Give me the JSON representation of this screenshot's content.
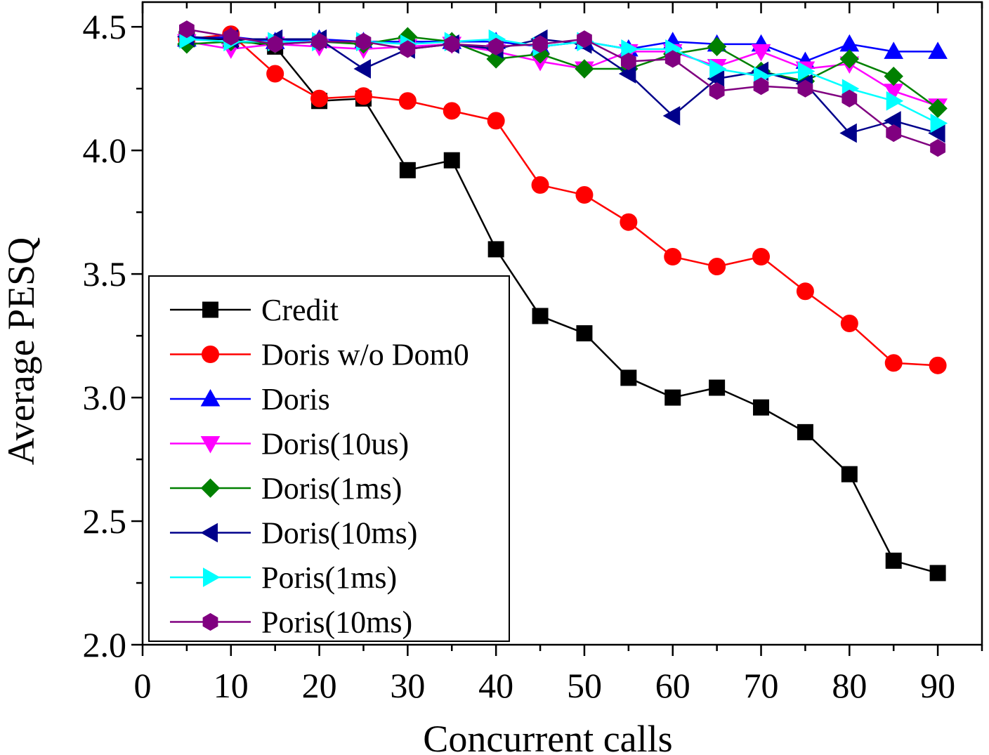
{
  "chart_data": {
    "type": "line",
    "xlabel": "Concurrent calls",
    "ylabel": "Average PESQ",
    "xlim": [
      0,
      95
    ],
    "ylim": [
      2.0,
      4.6
    ],
    "xticks": [
      "0",
      "10",
      "20",
      "30",
      "40",
      "50",
      "60",
      "70",
      "80",
      "90"
    ],
    "yticks": [
      "2.0",
      "2.5",
      "3.0",
      "3.5",
      "4.0",
      "4.5"
    ],
    "legend_position": "lower-left",
    "grid": false,
    "x": [
      5,
      10,
      15,
      20,
      25,
      30,
      35,
      40,
      45,
      50,
      55,
      60,
      65,
      70,
      75,
      80,
      85,
      90
    ],
    "series": [
      {
        "name": "Credit",
        "color": "#000000",
        "marker": "square",
        "values": [
          4.45,
          4.45,
          4.42,
          4.2,
          4.21,
          3.92,
          3.96,
          3.6,
          3.33,
          3.26,
          3.08,
          3.0,
          3.04,
          2.96,
          2.86,
          2.69,
          2.34,
          2.29
        ]
      },
      {
        "name": "Doris w/o Dom0",
        "color": "#ff0000",
        "marker": "circle",
        "values": [
          4.45,
          4.47,
          4.31,
          4.21,
          4.22,
          4.2,
          4.16,
          4.12,
          3.86,
          3.82,
          3.71,
          3.57,
          3.53,
          3.57,
          3.43,
          3.3,
          3.14,
          3.13
        ]
      },
      {
        "name": "Doris",
        "color": "#0000ff",
        "marker": "triangle-up",
        "values": [
          4.45,
          4.46,
          4.44,
          4.45,
          4.44,
          4.44,
          4.44,
          4.44,
          4.42,
          4.44,
          4.41,
          4.44,
          4.43,
          4.43,
          4.36,
          4.43,
          4.4,
          4.4
        ]
      },
      {
        "name": "Doris(10us)",
        "color": "#ff00ff",
        "marker": "triangle-down",
        "values": [
          4.44,
          4.41,
          4.43,
          4.42,
          4.41,
          4.42,
          4.43,
          4.4,
          4.36,
          4.33,
          4.4,
          4.4,
          4.34,
          4.4,
          4.33,
          4.35,
          4.24,
          4.18
        ]
      },
      {
        "name": "Doris(1ms)",
        "color": "#008000",
        "marker": "diamond",
        "values": [
          4.43,
          4.44,
          4.43,
          4.44,
          4.43,
          4.46,
          4.44,
          4.37,
          4.39,
          4.33,
          4.33,
          4.39,
          4.42,
          4.32,
          4.28,
          4.37,
          4.3,
          4.17
        ]
      },
      {
        "name": "Doris(10ms)",
        "color": "#00008b",
        "marker": "triangle-left",
        "values": [
          4.46,
          4.45,
          4.45,
          4.45,
          4.33,
          4.41,
          4.43,
          4.41,
          4.45,
          4.43,
          4.31,
          4.14,
          4.29,
          4.32,
          4.27,
          4.07,
          4.12,
          4.07
        ]
      },
      {
        "name": "Poris(1ms)",
        "color": "#00ffff",
        "marker": "triangle-right",
        "values": [
          4.45,
          4.44,
          4.44,
          4.44,
          4.44,
          4.43,
          4.44,
          4.45,
          4.42,
          4.44,
          4.41,
          4.41,
          4.33,
          4.3,
          4.32,
          4.25,
          4.2,
          4.11
        ]
      },
      {
        "name": "Poris(10ms)",
        "color": "#800080",
        "marker": "hexagon",
        "values": [
          4.49,
          4.46,
          4.43,
          4.44,
          4.44,
          4.41,
          4.43,
          4.42,
          4.43,
          4.45,
          4.36,
          4.37,
          4.24,
          4.26,
          4.25,
          4.21,
          4.07,
          4.01
        ]
      }
    ]
  }
}
